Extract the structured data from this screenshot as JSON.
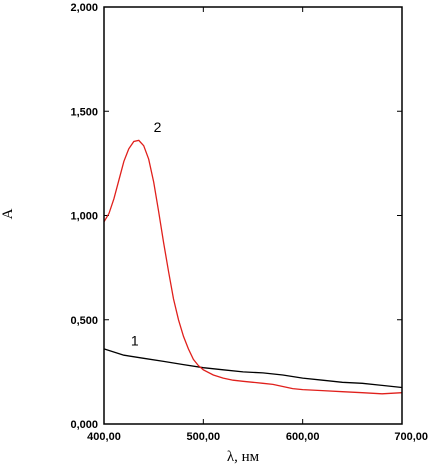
{
  "chart_data": {
    "type": "line",
    "xlabel": "λ, нм",
    "ylabel": "A",
    "xlim": [
      400,
      700
    ],
    "ylim": [
      0,
      2
    ],
    "x_ticks": [
      400,
      500,
      600,
      700
    ],
    "x_tick_labels": [
      "400,00",
      "500,00",
      "600,00",
      "700,00"
    ],
    "y_ticks": [
      0,
      0.5,
      1,
      1.5,
      2
    ],
    "y_tick_labels": [
      "0,000",
      "0,500",
      "1,000",
      "1,500",
      "2,000"
    ],
    "grid": false,
    "series": [
      {
        "name": "1",
        "color": "#000000",
        "x": [
          400,
          420,
          440,
          460,
          480,
          500,
          520,
          540,
          560,
          580,
          600,
          620,
          640,
          660,
          680,
          700
        ],
        "y": [
          0.36,
          0.33,
          0.315,
          0.3,
          0.285,
          0.27,
          0.26,
          0.25,
          0.245,
          0.235,
          0.22,
          0.21,
          0.2,
          0.195,
          0.185,
          0.175
        ]
      },
      {
        "name": "2",
        "color": "#e0201c",
        "x": [
          400,
          405,
          410,
          415,
          420,
          425,
          430,
          435,
          440,
          445,
          450,
          455,
          460,
          465,
          470,
          475,
          480,
          485,
          490,
          495,
          500,
          510,
          520,
          530,
          540,
          550,
          560,
          570,
          580,
          590,
          600,
          620,
          640,
          660,
          680,
          700
        ],
        "y": [
          0.97,
          1.01,
          1.08,
          1.17,
          1.26,
          1.32,
          1.355,
          1.36,
          1.335,
          1.27,
          1.16,
          1.02,
          0.87,
          0.73,
          0.6,
          0.5,
          0.42,
          0.36,
          0.31,
          0.28,
          0.26,
          0.235,
          0.22,
          0.21,
          0.205,
          0.2,
          0.195,
          0.19,
          0.18,
          0.17,
          0.165,
          0.16,
          0.155,
          0.15,
          0.145,
          0.15
        ]
      }
    ]
  }
}
